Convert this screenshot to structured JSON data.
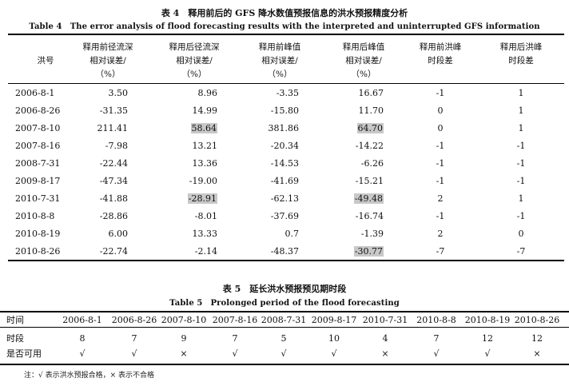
{
  "table4": {
    "caption_cn": "表 4　释用前后的 GFS 降水数值预报信息的洪水预报精度分析",
    "caption_en": "Table 4　The error analysis of flood forecasting results with the interpreted and uninterrupted GFS information",
    "headers": [
      {
        "lines": [
          "洪号"
        ]
      },
      {
        "lines": [
          "释用前径流深",
          "相对误差/",
          "（%）"
        ]
      },
      {
        "lines": [
          "释用后径流深",
          "相对误差/",
          "（%）"
        ]
      },
      {
        "lines": [
          "释用前峰值",
          "相对误差/",
          "（%）"
        ]
      },
      {
        "lines": [
          "释用后峰值",
          "相对误差/",
          "（%）"
        ]
      },
      {
        "lines": [
          "释用前洪峰",
          "时段差"
        ]
      },
      {
        "lines": [
          "释用后洪峰",
          "时段差"
        ]
      }
    ],
    "rows": [
      {
        "id": "2006-8-1",
        "c1": "3.50",
        "c2": "8.96",
        "c3": "-3.35",
        "c4": "16.67",
        "c5": "-1",
        "c6": "1"
      },
      {
        "id": "2006-8-26",
        "c1": "-31.35",
        "c2": "14.99",
        "c3": "-15.80",
        "c4": "11.70",
        "c5": "0",
        "c6": "1"
      },
      {
        "id": "2007-8-10",
        "c1": "211.41",
        "c2": "58.64",
        "c3": "381.86",
        "c4": "64.70",
        "c5": "0",
        "c6": "1"
      },
      {
        "id": "2007-8-16",
        "c1": "-7.98",
        "c2": "13.21",
        "c3": "-20.34",
        "c4": "-14.22",
        "c5": "-1",
        "c6": "-1"
      },
      {
        "id": "2008-7-31",
        "c1": "-22.44",
        "c2": "13.36",
        "c3": "-14.53",
        "c4": "-6.26",
        "c5": "-1",
        "c6": "-1"
      },
      {
        "id": "2009-8-17",
        "c1": "-47.34",
        "c2": "-19.00",
        "c3": "-41.69",
        "c4": "-15.21",
        "c5": "-1",
        "c6": "-1"
      },
      {
        "id": "2010-7-31",
        "c1": "-41.88",
        "c2": "-28.91",
        "c3": "-62.13",
        "c4": "-49.48",
        "c5": "2",
        "c6": "1"
      },
      {
        "id": "2010-8-8",
        "c1": "-28.86",
        "c2": "-8.01",
        "c3": "-37.69",
        "c4": "-16.74",
        "c5": "-1",
        "c6": "-1"
      },
      {
        "id": "2010-8-19",
        "c1": "6.00",
        "c2": "13.33",
        "c3": "0.7",
        "c4": "-1.39",
        "c5": "2",
        "c6": "0"
      },
      {
        "id": "2010-8-26",
        "c1": "-22.74",
        "c2": "-2.14",
        "c3": "-48.37",
        "c4": "-30.77",
        "c5": "-7",
        "c6": "-7"
      }
    ],
    "highlight_color": "#c8c8c8"
  },
  "table5": {
    "caption_cn": "表 5　延长洪水预报预见期时段",
    "caption_en": "Table 5　Prolonged period of the flood forecasting",
    "row_labels": [
      "时间",
      "时段",
      "是否可用"
    ],
    "dates": [
      "2006-8-1",
      "2006-8-26",
      "2007-8-10",
      "2007-8-16",
      "2008-7-31",
      "2009-8-17",
      "2010-7-31",
      "2010-8-8",
      "2010-8-19",
      "2010-8-26"
    ],
    "periods": [
      "8",
      "7",
      "9",
      "7",
      "5",
      "10",
      "4",
      "7",
      "12",
      "12"
    ],
    "usable": [
      "√",
      "√",
      "×",
      "√",
      "√",
      "√",
      "×",
      "√",
      "√",
      "×"
    ],
    "note": "注：√ 表示洪水预报合格，× 表示不合格"
  }
}
